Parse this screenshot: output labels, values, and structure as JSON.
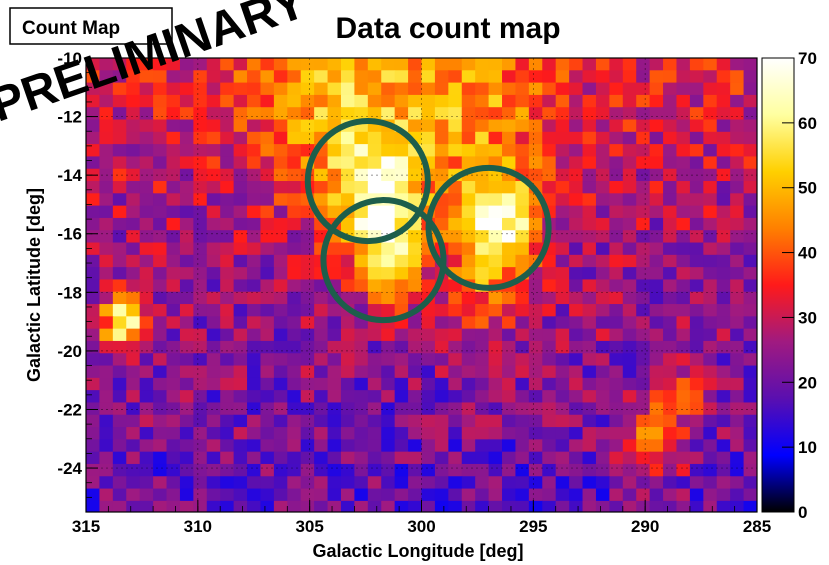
{
  "chart_data": {
    "type": "heatmap",
    "title": "Data count map",
    "stat_box_label": "Count Map",
    "watermark": "PRELIMINARY",
    "xlabel": "Galactic Longitude [deg]",
    "ylabel": "Galactic Latitude [deg]",
    "xlim": [
      315,
      285
    ],
    "ylim": [
      -25.5,
      -10
    ],
    "x_ticks": [
      315,
      310,
      305,
      300,
      295,
      290,
      285
    ],
    "x_tick_labels": [
      "315",
      "310",
      "305",
      "300",
      "295",
      "290",
      "285"
    ],
    "y_ticks": [
      -10,
      -12,
      -14,
      -16,
      -18,
      -20,
      -22,
      -24
    ],
    "y_tick_labels": [
      "-10",
      "-12",
      "-14",
      "-16",
      "-18",
      "-20",
      "-22",
      "-24"
    ],
    "colorbar": {
      "range": [
        0,
        70
      ],
      "ticks": [
        0,
        10,
        20,
        30,
        40,
        50,
        60,
        70
      ],
      "tick_labels": [
        "0",
        "10",
        "20",
        "30",
        "40",
        "50",
        "60",
        "70"
      ]
    },
    "grid": true,
    "bins": {
      "nx": 50,
      "ny": 37,
      "x_step_deg": 0.6,
      "y_step_deg": 0.42
    },
    "hotspots": [
      {
        "l": 302,
        "b": -14.7,
        "amplitude": 32,
        "sigma": 1.3
      },
      {
        "l": 301.5,
        "b": -16.8,
        "amplitude": 26,
        "sigma": 1.1
      },
      {
        "l": 296.5,
        "b": -15.8,
        "amplitude": 36,
        "sigma": 1.2
      },
      {
        "l": 313.3,
        "b": -19,
        "amplitude": 36,
        "sigma": 0.7
      },
      {
        "l": 304,
        "b": -11.5,
        "amplitude": 18,
        "sigma": 2.6
      },
      {
        "l": 298,
        "b": -12,
        "amplitude": 16,
        "sigma": 2.5
      },
      {
        "l": 289.5,
        "b": -23,
        "amplitude": 22,
        "sigma": 1.0
      },
      {
        "l": 288,
        "b": -21.3,
        "amplitude": 14,
        "sigma": 0.7
      },
      {
        "l": 297.5,
        "b": -18,
        "amplitude": 12,
        "sigma": 1.2
      }
    ],
    "background": {
      "base": 25,
      "north_boost": 8,
      "west_south_dip": -6,
      "noise": 9
    },
    "circles": [
      {
        "l": 302.4,
        "b": -14.2,
        "r_deg": 2.05,
        "color": "#1d5e4b"
      },
      {
        "l": 301.7,
        "b": -16.9,
        "r_deg": 2.05,
        "color": "#1d5e4b"
      },
      {
        "l": 297,
        "b": -15.8,
        "r_deg": 2.05,
        "color": "#1d5e4b"
      }
    ],
    "colors": {
      "frame": "#000000",
      "circle": "#1d5e4b",
      "stamp": "#000000",
      "palette": [
        "#000000",
        "#0000ff",
        "#5a0fb0",
        "#a01a80",
        "#ff1a1a",
        "#ff8000",
        "#ffd000",
        "#ffffa0",
        "#ffffff"
      ]
    }
  }
}
